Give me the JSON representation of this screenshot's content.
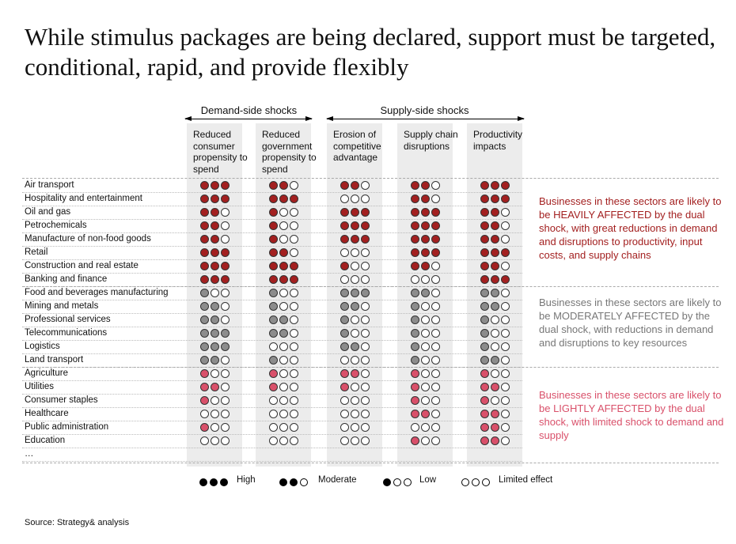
{
  "title": "While stimulus packages are being declared, support must be targeted, conditional, rapid, and provide flexibly",
  "groups": {
    "demand": "Demand-side shocks",
    "supply": "Supply-side shocks"
  },
  "colors": {
    "heavy": "#a32020",
    "moderate": "#8c8c8c",
    "light": "#d9506a",
    "empty": "#ffffff"
  },
  "chart_data": {
    "type": "table",
    "title": "While stimulus packages are being declared, support must be targeted, conditional, rapid, and provide flexibly",
    "columns": [
      "Reduced consumer propensity to spend",
      "Reduced government propensity to spend",
      "Erosion of competitive advantage",
      "Supply chain disruptions",
      "Productivity impacts"
    ],
    "scale": {
      "3": "High",
      "2": "Moderate",
      "1": "Low",
      "0": "Limited effect"
    },
    "rows": [
      {
        "sector": "Air transport",
        "group": "heavy",
        "values": [
          3,
          2,
          2,
          2,
          3
        ]
      },
      {
        "sector": "Hospitality and entertainment",
        "group": "heavy",
        "values": [
          3,
          3,
          0,
          2,
          3
        ]
      },
      {
        "sector": "Oil and gas",
        "group": "heavy",
        "values": [
          2,
          1,
          3,
          3,
          2
        ]
      },
      {
        "sector": "Petrochemicals",
        "group": "heavy",
        "values": [
          2,
          1,
          3,
          3,
          2
        ]
      },
      {
        "sector": "Manufacture of non-food goods",
        "group": "heavy",
        "values": [
          2,
          1,
          3,
          3,
          2
        ]
      },
      {
        "sector": "Retail",
        "group": "heavy",
        "values": [
          3,
          2,
          0,
          3,
          3
        ]
      },
      {
        "sector": "Construction and real estate",
        "group": "heavy",
        "values": [
          3,
          3,
          1,
          2,
          2
        ]
      },
      {
        "sector": "Banking and finance",
        "group": "heavy",
        "values": [
          3,
          3,
          0,
          0,
          3
        ]
      },
      {
        "sector": "Food and beverages manufacturing",
        "group": "moderate",
        "values": [
          1,
          1,
          3,
          2,
          2
        ]
      },
      {
        "sector": "Mining and metals",
        "group": "moderate",
        "values": [
          2,
          1,
          2,
          1,
          2
        ]
      },
      {
        "sector": "Professional services",
        "group": "moderate",
        "values": [
          2,
          2,
          1,
          1,
          1
        ]
      },
      {
        "sector": "Telecommunications",
        "group": "moderate",
        "values": [
          3,
          2,
          1,
          1,
          1
        ]
      },
      {
        "sector": "Logistics",
        "group": "moderate",
        "values": [
          3,
          0,
          2,
          1,
          1
        ]
      },
      {
        "sector": "Land transport",
        "group": "moderate",
        "values": [
          2,
          1,
          0,
          1,
          2
        ]
      },
      {
        "sector": "Agriculture",
        "group": "light",
        "values": [
          1,
          1,
          2,
          1,
          1
        ]
      },
      {
        "sector": "Utilities",
        "group": "light",
        "values": [
          2,
          1,
          1,
          1,
          2
        ]
      },
      {
        "sector": "Consumer staples",
        "group": "light",
        "values": [
          1,
          0,
          0,
          1,
          1
        ]
      },
      {
        "sector": "Healthcare",
        "group": "light",
        "values": [
          0,
          0,
          0,
          2,
          2
        ]
      },
      {
        "sector": "Public administration",
        "group": "light",
        "values": [
          1,
          0,
          0,
          0,
          2
        ]
      },
      {
        "sector": "Education",
        "group": "light",
        "values": [
          0,
          0,
          0,
          1,
          2
        ]
      }
    ],
    "ellipsis": "…"
  },
  "notes": {
    "heavy": "Businesses in these sectors are likely to be HEAVILY AFFECTED by the dual shock, with great reductions in demand and disruptions to productivity, input costs, and supply chains",
    "moderate": "Businesses in these sectors are likely to be MODERATELY AFFECTED by the dual shock, with reductions in demand and disruptions to key resources",
    "light": "Businesses in these sectors are likely to be LIGHTLY AFFECTED by the dual shock, with limited shock to demand and supply"
  },
  "legend": [
    {
      "label": "High",
      "filled": 3
    },
    {
      "label": "Moderate",
      "filled": 2
    },
    {
      "label": "Low",
      "filled": 1
    },
    {
      "label": "Limited effect",
      "filled": 0
    }
  ],
  "source": "Source: Strategy& analysis"
}
